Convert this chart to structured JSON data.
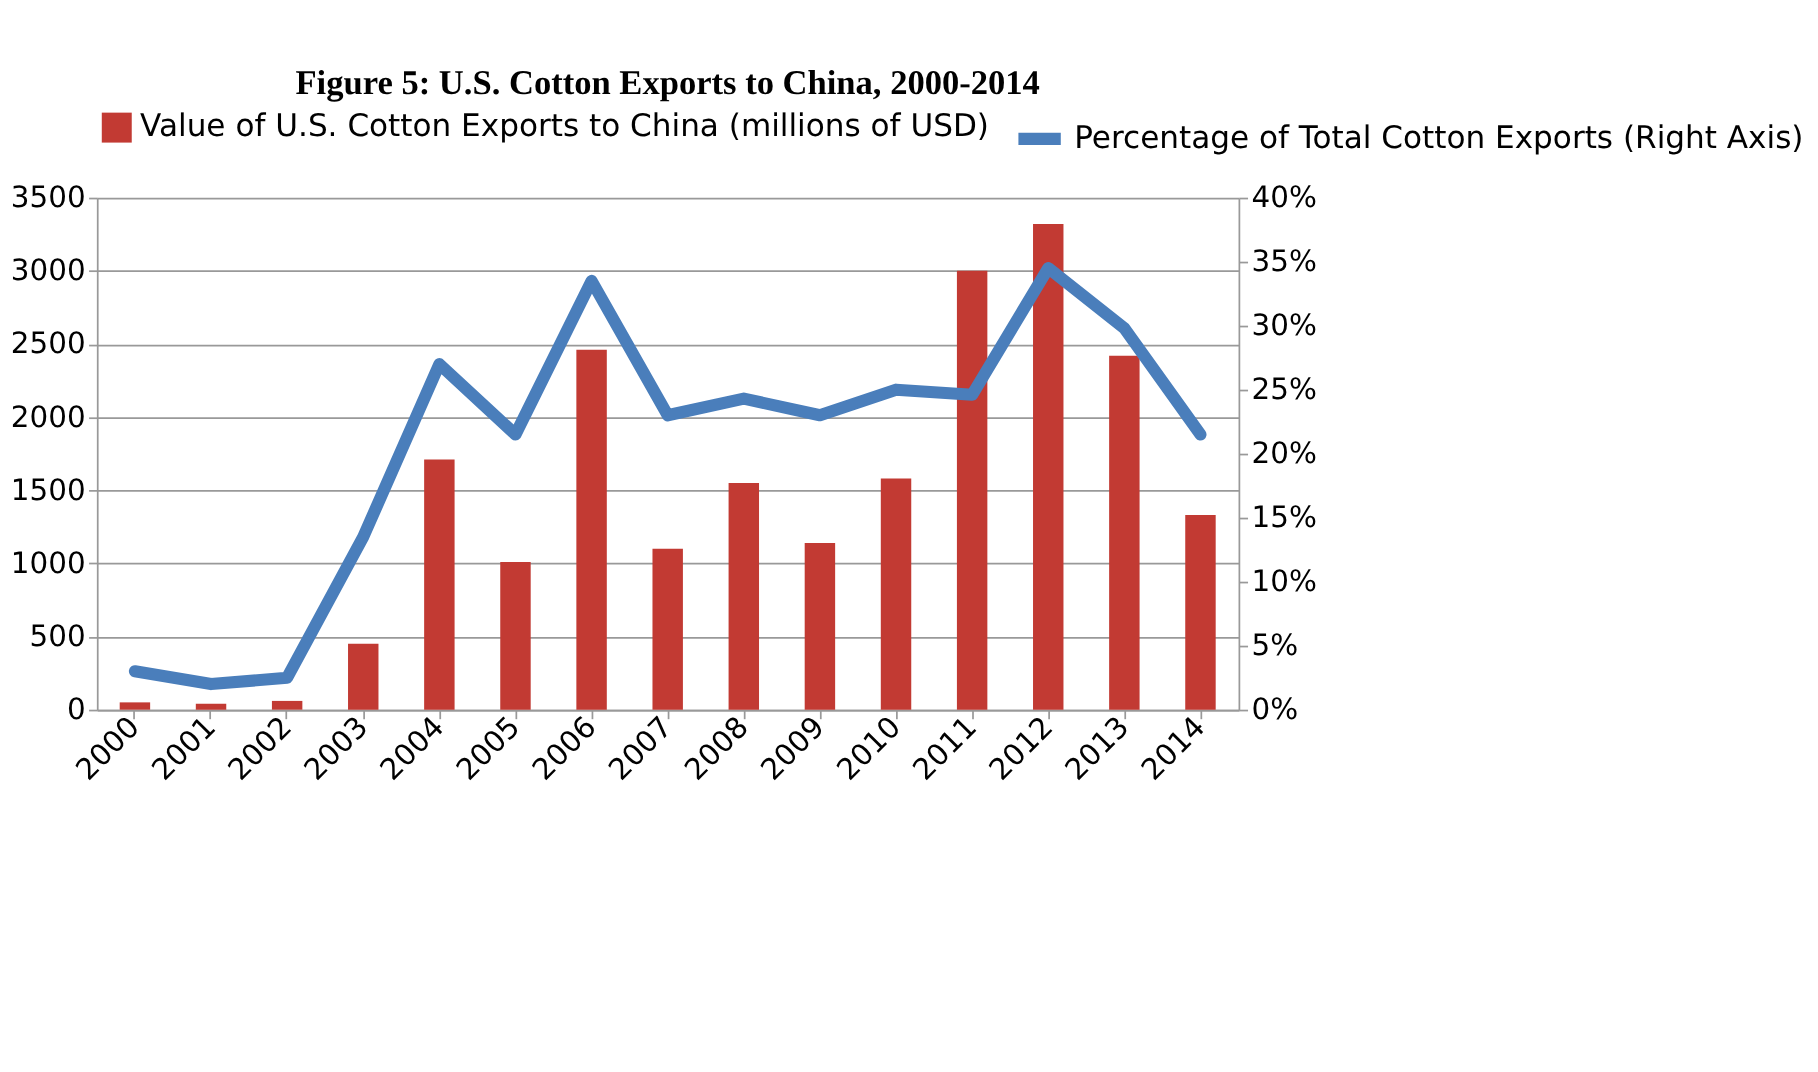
{
  "chart_data": {
    "type": "bar",
    "title": "Figure 5: U.S. Cotton Exports to China, 2000-2014",
    "categories": [
      "2000",
      "2001",
      "2002",
      "2003",
      "2004",
      "2005",
      "2006",
      "2007",
      "2008",
      "2009",
      "2010",
      "2011",
      "2012",
      "2013",
      "2014"
    ],
    "series": [
      {
        "name": "Value of U.S. Cotton Exports to China (millions of USD)",
        "color": "#c23a33",
        "values": [
          50,
          40,
          60,
          450,
          1710,
          1010,
          2460,
          1100,
          1550,
          1140,
          1580,
          3000,
          3320,
          2420,
          1330
        ]
      },
      {
        "name": "Percentage of Total Cotton Exports (Right Axis)",
        "color": "#4a7ebb",
        "type": "line",
        "axis": "y2",
        "values": [
          3,
          2,
          2.5,
          13.5,
          27,
          21.5,
          33.5,
          23,
          24.3,
          23,
          25,
          24.6,
          34.5,
          29.8,
          21.5
        ]
      }
    ],
    "ylim": [
      0,
      3500
    ],
    "yticks": [
      0,
      500,
      1000,
      1500,
      2000,
      2500,
      3000,
      3500
    ],
    "y2lim": [
      0,
      40
    ],
    "y2ticks": [
      {
        "value": 0,
        "label": "0%"
      },
      {
        "value": 5,
        "label": "5%"
      },
      {
        "value": 10,
        "label": "10%"
      },
      {
        "value": 15,
        "label": "15%"
      },
      {
        "value": 20,
        "label": "20%"
      },
      {
        "value": 25,
        "label": "25%"
      },
      {
        "value": 30,
        "label": "30%"
      },
      {
        "value": 35,
        "label": "35%"
      },
      {
        "value": 40,
        "label": "40%"
      }
    ],
    "grid": "y",
    "legend": "top",
    "marker": "none"
  }
}
